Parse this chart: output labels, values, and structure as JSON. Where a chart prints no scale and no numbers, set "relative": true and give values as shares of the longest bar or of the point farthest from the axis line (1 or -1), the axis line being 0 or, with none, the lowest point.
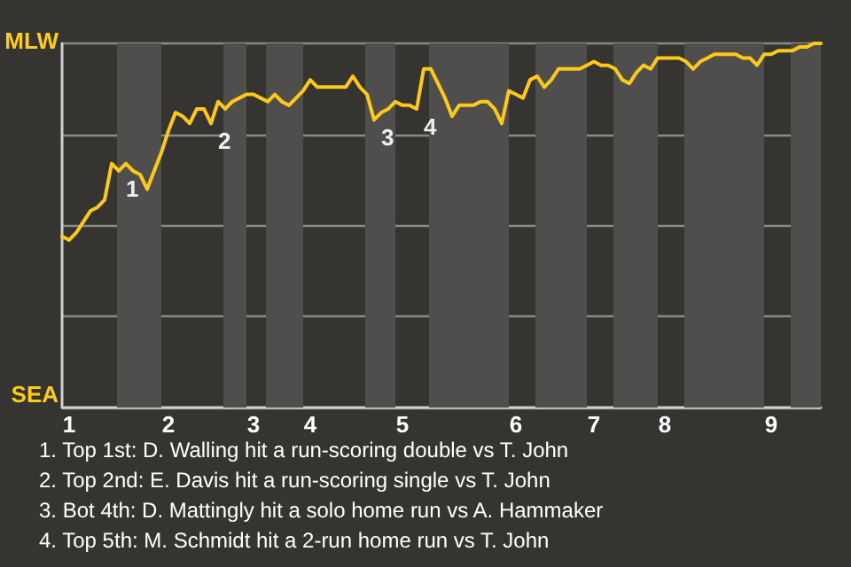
{
  "chart_data": {
    "type": "line",
    "relative": true,
    "categories": [
      null,
      "1",
      null,
      null,
      null,
      null,
      null,
      null,
      null,
      null,
      null,
      null,
      null,
      null,
      null,
      "2",
      null,
      null,
      null,
      null,
      null,
      null,
      null,
      null,
      null,
      null,
      null,
      "3",
      null,
      null,
      null,
      null,
      null,
      null,
      null,
      "4",
      null,
      null,
      null,
      null,
      null,
      null,
      null,
      null,
      null,
      null,
      null,
      null,
      "5",
      null,
      null,
      null,
      null,
      null,
      null,
      null,
      null,
      null,
      null,
      null,
      null,
      null,
      null,
      null,
      "6",
      null,
      null,
      null,
      null,
      null,
      null,
      null,
      null,
      null,
      null,
      "7",
      null,
      null,
      null,
      null,
      null,
      null,
      null,
      null,
      null,
      "8",
      null,
      null,
      null,
      null,
      null,
      null,
      null,
      null,
      null,
      null,
      null,
      null,
      null,
      null,
      "9",
      null,
      null,
      null,
      null,
      null,
      null,
      null
    ],
    "series": [
      {
        "color": "#ffc91a",
        "values": [
          0.47,
          0.46,
          0.48,
          0.51,
          0.54,
          0.55,
          0.57,
          0.67,
          0.65,
          0.67,
          0.65,
          0.64,
          0.6,
          0.65,
          0.7,
          0.76,
          0.81,
          0.8,
          0.78,
          0.82,
          0.82,
          0.78,
          0.84,
          0.82,
          0.84,
          0.85,
          0.86,
          0.86,
          0.85,
          0.84,
          0.86,
          0.84,
          0.83,
          0.85,
          0.87,
          0.9,
          0.88,
          0.88,
          0.88,
          0.88,
          0.88,
          0.91,
          0.88,
          0.86,
          0.79,
          0.81,
          0.82,
          0.84,
          0.83,
          0.83,
          0.82,
          0.93,
          0.93,
          0.89,
          0.85,
          0.8,
          0.83,
          0.83,
          0.83,
          0.84,
          0.84,
          0.82,
          0.78,
          0.87,
          0.86,
          0.85,
          0.9,
          0.91,
          0.88,
          0.9,
          0.93,
          0.93,
          0.93,
          0.93,
          0.94,
          0.95,
          0.94,
          0.94,
          0.93,
          0.9,
          0.89,
          0.92,
          0.94,
          0.93,
          0.96,
          0.96,
          0.96,
          0.96,
          0.95,
          0.93,
          0.95,
          0.96,
          0.97,
          0.97,
          0.97,
          0.97,
          0.96,
          0.96,
          0.94,
          0.97,
          0.97,
          0.98,
          0.98,
          0.98,
          0.99,
          0.99,
          1.0,
          1.0
        ]
      }
    ],
    "grid": "y",
    "marker": "none",
    "annotations": [
      "MLW",
      "SEA",
      "1",
      "2",
      "3",
      "4",
      "1. Top 1st: D. Walling hit a run-scoring double vs T. John",
      "2. Top 2nd: E. Davis hit a run-scoring single vs T. John",
      "3. Bot 4th: D. Mattingly hit a solo home run vs A. Hammaker",
      "4. Top 5th: M. Schmidt hit a 2-run home run vs T. John"
    ]
  }
}
